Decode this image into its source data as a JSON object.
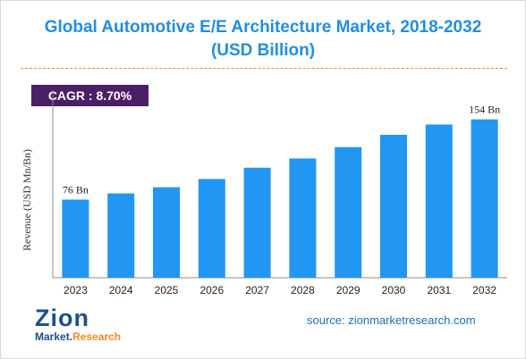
{
  "title": {
    "line1": "Global Automotive E/E Architecture Market, 2018-2032",
    "line2": "(USD Billion)"
  },
  "cagr_label": "CAGR : 8.70%",
  "source_text": "source: zionmarketresearch.com",
  "logo": {
    "wordmark": "Zion",
    "tagline_part1": "Market.",
    "tagline_part2": "Research"
  },
  "colors": {
    "title": "#1f8ee5",
    "bar": "#2196f3",
    "cagr_bg": "#4b1f66",
    "divider": "#f0883e"
  },
  "chart_data": {
    "type": "bar",
    "title": "Global Automotive E/E Architecture Market, 2018-2032 (USD Billion)",
    "xlabel": "",
    "ylabel": "Revenue (USD Mn/Bn)",
    "categories": [
      "2023",
      "2024",
      "2025",
      "2026",
      "2027",
      "2028",
      "2029",
      "2030",
      "2031",
      "2032"
    ],
    "series": [
      {
        "values": [
          76,
          82,
          88,
          96,
          107,
          116,
          127,
          139,
          149,
          154
        ]
      }
    ],
    "data_labels": [
      "76 Bn",
      null,
      null,
      null,
      null,
      null,
      null,
      null,
      null,
      "154 Bn"
    ],
    "ylim": [
      0,
      165
    ],
    "grid": false,
    "legend": "none"
  }
}
